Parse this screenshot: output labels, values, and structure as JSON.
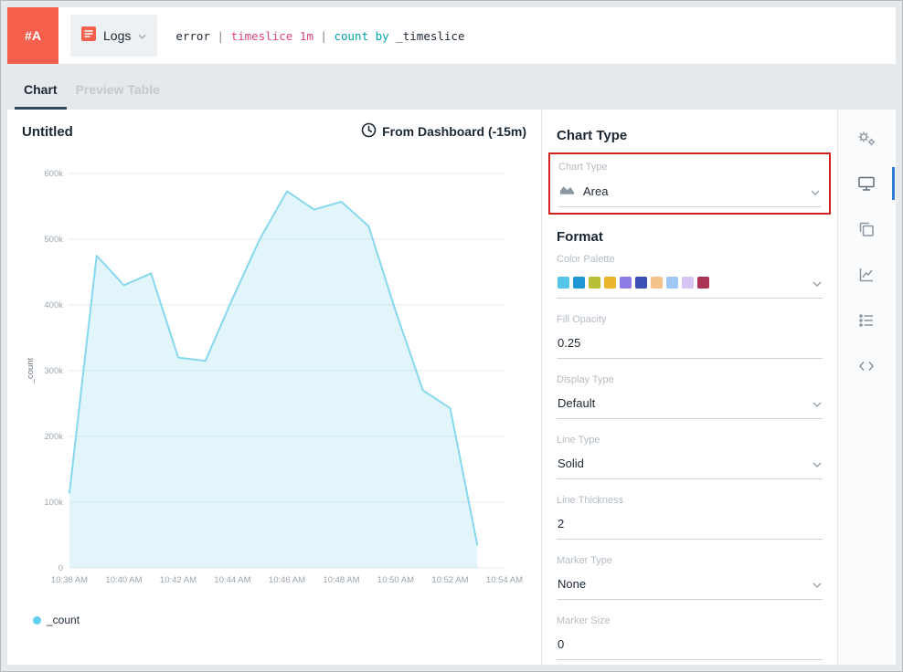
{
  "topbar": {
    "panel_badge": "#A",
    "source_label": "Logs",
    "query_tokens": [
      {
        "text": "error ",
        "type": "plain"
      },
      {
        "text": "| ",
        "type": "pipe"
      },
      {
        "text": "timeslice 1m ",
        "type": "keyword"
      },
      {
        "text": "| ",
        "type": "pipe"
      },
      {
        "text": "count by ",
        "type": "operator"
      },
      {
        "text": "_timeslice",
        "type": "plain"
      }
    ]
  },
  "tabs": [
    {
      "label": "Chart"
    },
    {
      "label": "Preview Table"
    }
  ],
  "chart_header": {
    "title": "Untitled",
    "time_range": "From Dashboard (-15m)"
  },
  "chart_data": {
    "type": "area",
    "title": "Untitled",
    "ylabel": "_count",
    "ylim": [
      0,
      600000
    ],
    "ytick_step": 100000,
    "x_axis_slots": 16,
    "x": [
      "10:38 AM",
      "10:39 AM",
      "10:40 AM",
      "10:41 AM",
      "10:42 AM",
      "10:43 AM",
      "10:44 AM",
      "10:45 AM",
      "10:46 AM",
      "10:47 AM",
      "10:48 AM",
      "10:49 AM",
      "10:50 AM",
      "10:51 AM",
      "10:52 AM",
      "10:53 AM"
    ],
    "xticks": [
      "10:38 AM",
      "10:40 AM",
      "10:42 AM",
      "10:44 AM",
      "10:46 AM",
      "10:48 AM",
      "10:50 AM",
      "10:52 AM",
      "10:54 AM"
    ],
    "series": [
      {
        "name": "_count",
        "color": "#87d8ee",
        "fill_opacity": 0.25,
        "values": [
          114000,
          475000,
          430000,
          448000,
          320000,
          315000,
          410000,
          500000,
          573000,
          545000,
          557000,
          520000,
          390000,
          270000,
          243000,
          35000
        ]
      }
    ],
    "grid": true,
    "legend_position": "bottom-left"
  },
  "legend": {
    "items": [
      {
        "label": "_count",
        "color": "#5fd0ee"
      }
    ]
  },
  "settings": {
    "section1_title": "Chart Type",
    "chart_type": {
      "label": "Chart Type",
      "value": "Area"
    },
    "section2_title": "Format",
    "color_palette": {
      "label": "Color Palette",
      "colors": [
        "#55c6e8",
        "#1f97d4",
        "#b6bf36",
        "#edb52e",
        "#8d7ce6",
        "#3b50b4",
        "#f5c389",
        "#9ec7f4",
        "#d8c4f2",
        "#aa3356"
      ]
    },
    "fill_opacity": {
      "label": "Fill Opacity",
      "value": "0.25"
    },
    "display_type": {
      "label": "Display Type",
      "value": "Default"
    },
    "line_type": {
      "label": "Line Type",
      "value": "Solid"
    },
    "line_thickness": {
      "label": "Line Thickness",
      "value": "2"
    },
    "marker_type": {
      "label": "Marker Type",
      "value": "None"
    },
    "marker_size": {
      "label": "Marker Size",
      "value": "0"
    }
  },
  "icon_rail": {
    "items": [
      "settings-gears-icon",
      "display-icon",
      "copy-panel-icon",
      "line-chart-icon",
      "legend-list-icon",
      "code-icon"
    ],
    "selected_index": 1
  },
  "annotation": {
    "highlight_color": "#cf1f1f"
  }
}
